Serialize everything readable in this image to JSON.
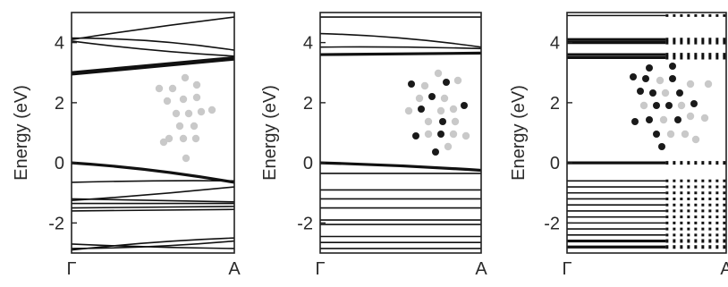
{
  "chart_data": [
    {
      "type": "line",
      "panel": "left",
      "ylabel": "Energy (eV)",
      "xticks": [
        "Γ",
        "A"
      ],
      "yticks": [
        4,
        2,
        0,
        -2
      ],
      "ylim": [
        -3,
        5
      ],
      "dotted": false,
      "inset_atoms": "light",
      "series": [
        {
          "x": [
            0,
            0.5,
            1
          ],
          "y": [
            4.1,
            4.5,
            4.85
          ]
        },
        {
          "x": [
            0,
            0.5,
            1
          ],
          "y": [
            4.15,
            4.05,
            3.75
          ]
        },
        {
          "x": [
            0,
            0.5,
            1
          ],
          "y": [
            4.05,
            3.75,
            3.55
          ]
        },
        {
          "x": [
            0,
            0.5,
            1
          ],
          "y": [
            2.95,
            3.2,
            3.45
          ],
          "bold": true
        },
        {
          "x": [
            0,
            0.5,
            1
          ],
          "y": [
            3.0,
            3.25,
            3.5
          ],
          "bold": true
        },
        {
          "x": [
            0,
            0.5,
            1
          ],
          "y": [
            0.0,
            -0.25,
            -0.65
          ],
          "bold": true
        },
        {
          "x": [
            0,
            0.5,
            1
          ],
          "y": [
            -0.65,
            -0.6,
            -0.6
          ]
        },
        {
          "x": [
            0,
            0.5,
            1
          ],
          "y": [
            -1.25,
            -1.05,
            -0.8
          ]
        },
        {
          "x": [
            0,
            0.5,
            1
          ],
          "y": [
            -1.2,
            -1.25,
            -1.3
          ]
        },
        {
          "x": [
            0,
            0.5,
            1
          ],
          "y": [
            -1.35,
            -1.35,
            -1.35
          ]
        },
        {
          "x": [
            0,
            0.5,
            1
          ],
          "y": [
            -1.5,
            -1.48,
            -1.45
          ]
        },
        {
          "x": [
            0,
            0.5,
            1
          ],
          "y": [
            -1.6,
            -1.58,
            -1.55
          ]
        },
        {
          "x": [
            0,
            0.5,
            1
          ],
          "y": [
            -2.7,
            -2.8,
            -2.85
          ]
        },
        {
          "x": [
            0,
            0.5,
            1
          ],
          "y": [
            -2.85,
            -2.78,
            -2.6
          ]
        },
        {
          "x": [
            0,
            0.5,
            1
          ],
          "y": [
            -2.9,
            -2.65,
            -2.5
          ]
        }
      ]
    },
    {
      "type": "line",
      "panel": "middle",
      "ylabel": "Energy (eV)",
      "xticks": [
        "Γ",
        "A"
      ],
      "yticks": [
        4,
        2,
        0,
        -2
      ],
      "ylim": [
        -3,
        5
      ],
      "dotted": false,
      "inset_atoms": "mixed",
      "series": [
        {
          "x": [
            0,
            0.5,
            1
          ],
          "y": [
            4.85,
            4.85,
            4.85
          ]
        },
        {
          "x": [
            0,
            0.5,
            1
          ],
          "y": [
            4.3,
            4.15,
            3.85
          ]
        },
        {
          "x": [
            0,
            0.5,
            1
          ],
          "y": [
            3.85,
            3.85,
            3.8
          ]
        },
        {
          "x": [
            0,
            0.5,
            1
          ],
          "y": [
            3.6,
            3.62,
            3.65
          ],
          "bold": true
        },
        {
          "x": [
            0,
            0.5,
            1
          ],
          "y": [
            0.0,
            -0.1,
            -0.25
          ],
          "bold": true
        },
        {
          "x": [
            0,
            0.5,
            1
          ],
          "y": [
            -0.35,
            -0.35,
            -0.35
          ]
        },
        {
          "x": [
            0,
            0.5,
            1
          ],
          "y": [
            -0.9,
            -0.9,
            -0.9
          ]
        },
        {
          "x": [
            0,
            0.5,
            1
          ],
          "y": [
            -1.2,
            -1.2,
            -1.2
          ]
        },
        {
          "x": [
            0,
            0.5,
            1
          ],
          "y": [
            -1.5,
            -1.5,
            -1.5
          ]
        },
        {
          "x": [
            0,
            0.5,
            1
          ],
          "y": [
            -1.9,
            -1.9,
            -1.9
          ]
        },
        {
          "x": [
            0,
            0.5,
            1
          ],
          "y": [
            -2.05,
            -2.05,
            -2.05
          ]
        },
        {
          "x": [
            0,
            0.5,
            1
          ],
          "y": [
            -2.45,
            -2.45,
            -2.45
          ]
        },
        {
          "x": [
            0,
            0.5,
            1
          ],
          "y": [
            -2.65,
            -2.65,
            -2.65
          ]
        },
        {
          "x": [
            0,
            0.5,
            1
          ],
          "y": [
            -2.85,
            -2.85,
            -2.85
          ]
        }
      ]
    },
    {
      "type": "scatter",
      "panel": "right",
      "ylabel": "Energy (eV)",
      "xticks": [
        "Γ",
        "A"
      ],
      "yticks": [
        4,
        2,
        0,
        -2
      ],
      "ylim": [
        -3,
        5
      ],
      "dotted": true,
      "inset_atoms": "mixed",
      "series": [
        {
          "x": [
            0,
            1
          ],
          "y": [
            4.9,
            4.9
          ]
        },
        {
          "x": [
            0,
            1
          ],
          "y": [
            4.1,
            4.1
          ],
          "bold": true
        },
        {
          "x": [
            0,
            1
          ],
          "y": [
            4.0,
            4.0
          ],
          "bold": true
        },
        {
          "x": [
            0,
            1
          ],
          "y": [
            3.6,
            3.6
          ],
          "bold": true
        },
        {
          "x": [
            0,
            1
          ],
          "y": [
            3.5,
            3.5
          ],
          "bold": true
        },
        {
          "x": [
            0,
            1
          ],
          "y": [
            0.0,
            0.0
          ],
          "bold": true
        },
        {
          "x": [
            0,
            1
          ],
          "y": [
            -0.6,
            -0.6
          ]
        },
        {
          "x": [
            0,
            1
          ],
          "y": [
            -0.8,
            -0.8
          ]
        },
        {
          "x": [
            0,
            1
          ],
          "y": [
            -1.0,
            -1.0
          ]
        },
        {
          "x": [
            0,
            1
          ],
          "y": [
            -1.2,
            -1.2
          ]
        },
        {
          "x": [
            0,
            1
          ],
          "y": [
            -1.4,
            -1.4
          ]
        },
        {
          "x": [
            0,
            1
          ],
          "y": [
            -1.6,
            -1.6
          ]
        },
        {
          "x": [
            0,
            1
          ],
          "y": [
            -1.8,
            -1.8
          ]
        },
        {
          "x": [
            0,
            1
          ],
          "y": [
            -2.0,
            -2.0
          ]
        },
        {
          "x": [
            0,
            1
          ],
          "y": [
            -2.2,
            -2.2
          ]
        },
        {
          "x": [
            0,
            1
          ],
          "y": [
            -2.4,
            -2.4
          ]
        },
        {
          "x": [
            0,
            1
          ],
          "y": [
            -2.6,
            -2.6
          ],
          "bold": true
        },
        {
          "x": [
            0,
            1
          ],
          "y": [
            -2.8,
            -2.8
          ],
          "bold": true
        }
      ]
    }
  ]
}
